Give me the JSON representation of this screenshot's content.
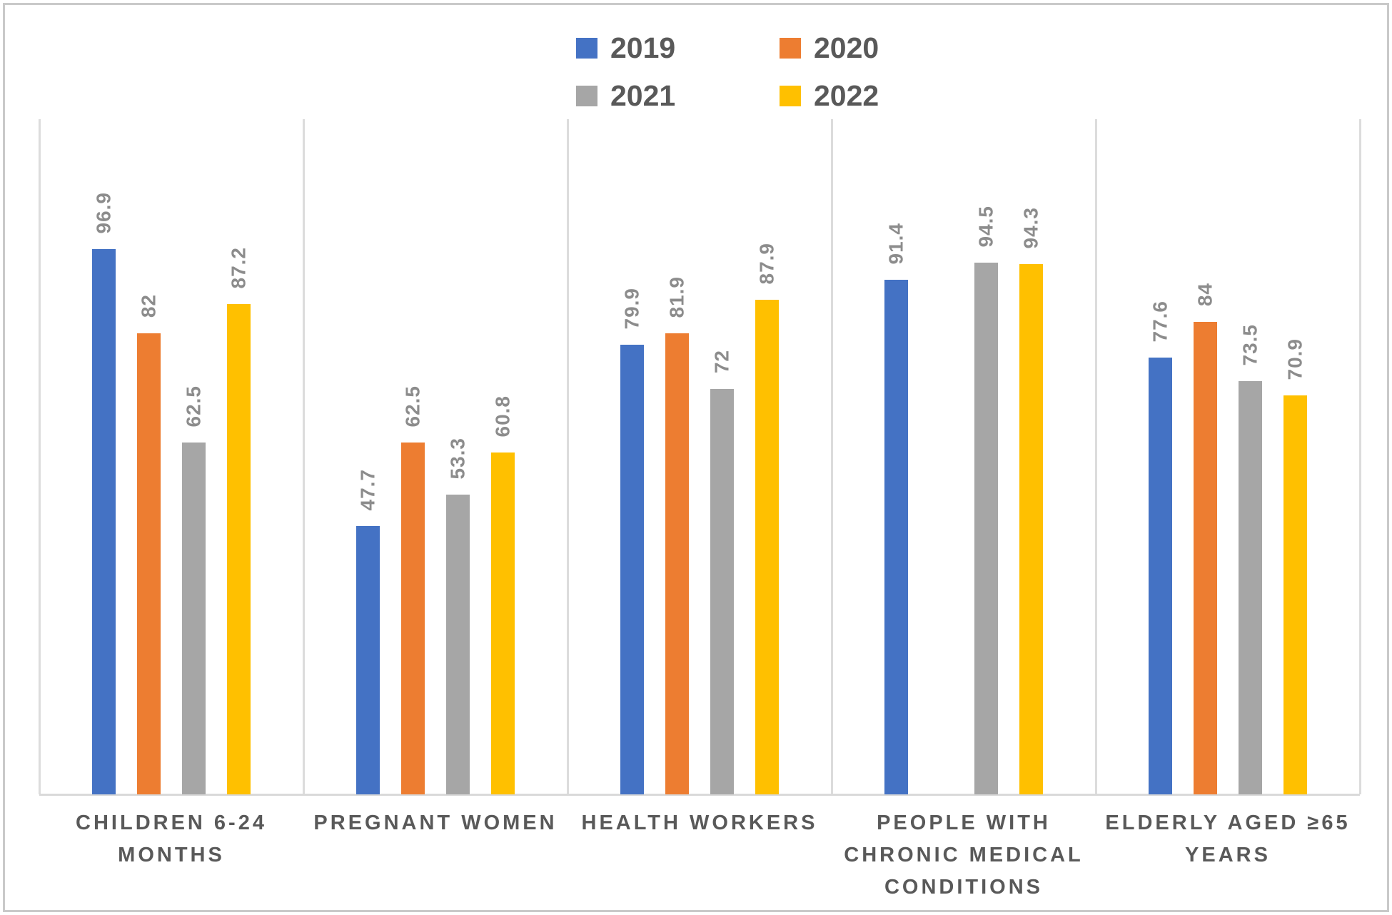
{
  "chart_data": {
    "type": "bar",
    "title": "",
    "categories": [
      "CHILDREN 6-24 MONTHS",
      "PREGNANT WOMEN",
      "HEALTH WORKERS",
      "PEOPLE WITH CHRONIC MEDICAL CONDITIONS",
      "ELDERLY AGED ≥65 YEARS"
    ],
    "category_label_lines": [
      [
        "CHILDREN 6-24",
        "MONTHS"
      ],
      [
        "PREGNANT WOMEN"
      ],
      [
        "HEALTH WORKERS"
      ],
      [
        "PEOPLE WITH",
        "CHRONIC MEDICAL",
        "CONDITIONS"
      ],
      [
        "ELDERLY AGED ≥65",
        "YEARS"
      ]
    ],
    "series": [
      {
        "name": "2019",
        "color": "#4472c4",
        "values": [
          96.9,
          47.7,
          79.9,
          91.4,
          77.6
        ],
        "labels": [
          "96.9",
          "47.7",
          "79.9",
          "91.4",
          "77.6"
        ]
      },
      {
        "name": "2020",
        "color": "#ed7d31",
        "values": [
          82,
          62.5,
          81.9,
          null,
          84
        ],
        "labels": [
          "82",
          "62.5",
          "81.9",
          null,
          "84"
        ]
      },
      {
        "name": "2021",
        "color": "#a6a6a6",
        "values": [
          62.5,
          53.3,
          72,
          94.5,
          73.5
        ],
        "labels": [
          "62.5",
          "53.3",
          "72",
          "94.5",
          "73.5"
        ]
      },
      {
        "name": "2022",
        "color": "#ffc000",
        "values": [
          87.2,
          60.8,
          87.9,
          94.3,
          70.9
        ],
        "labels": [
          "87.2",
          "60.8",
          "87.9",
          "94.3",
          "70.9"
        ]
      }
    ],
    "xlabel": "",
    "ylabel": "",
    "ylim": [
      0,
      120
    ],
    "value_axis_visible": false,
    "grid": "vertical-category-separators-only",
    "legend_position": "top-center-2x2",
    "data_labels": "rotated-90-above-bars",
    "style": {
      "legend_text_color": "#595959",
      "category_text_color": "#595959",
      "data_label_color": "#8c8c8c",
      "gridline_color": "#dcdcdc",
      "baseline_color": "#d9d9d9",
      "frame_border_color": "#c9c9c9",
      "background": "#ffffff"
    }
  }
}
